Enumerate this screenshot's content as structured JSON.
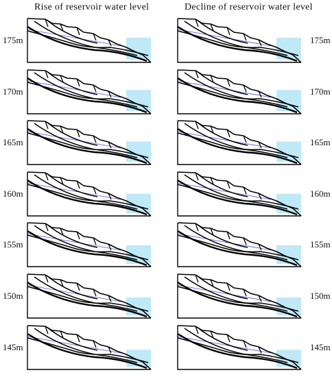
{
  "titles": {
    "rise": "Rise of reservoir water level",
    "decline": "Decline of reservoir water level"
  },
  "levels": [
    "175m",
    "170m",
    "165m",
    "160m",
    "155m",
    "150m",
    "145m"
  ],
  "colors": {
    "water": "#bfe9f7",
    "phreatic_line": "#4a55c8",
    "slope_outline": "#000000"
  }
}
